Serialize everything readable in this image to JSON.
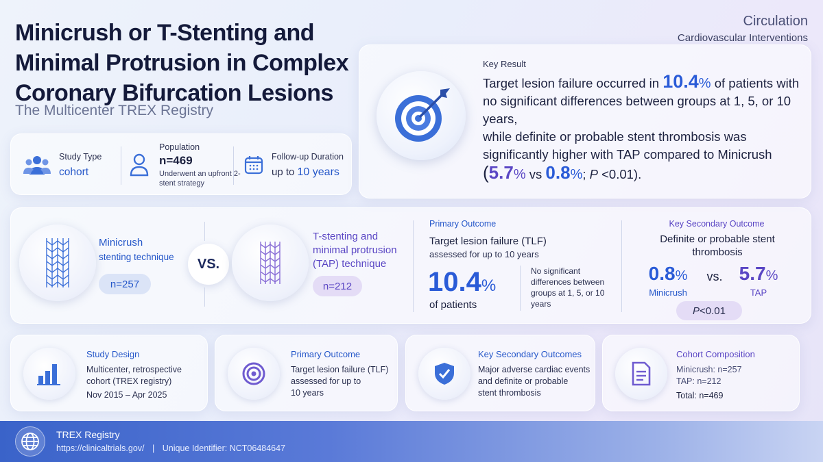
{
  "header": {
    "title": "Minicrush or T-Stenting and Minimal Protrusion in Complex Coronary Bifurcation Lesions",
    "subtitle": "The Multicenter TREX Registry",
    "journal_line1": "Circulation",
    "journal_line2": "Cardiovascular Interventions"
  },
  "info": {
    "study_type_label": "Study Type",
    "study_type_value": "cohort",
    "population_label": "Population",
    "population_value": "n=469",
    "population_note": "Underwent an upfront 2-stent strategy",
    "followup_label": "Follow-up Duration",
    "followup_prefix": "up to ",
    "followup_value": "10 years"
  },
  "key_result": {
    "label": "Key Result",
    "t1": "Target lesion failure occurred in ",
    "pct": "10.4",
    "pct_sign": "%",
    "t2": " of patients with no significant differences between groups at 1, 5, or 10 years,",
    "t3": "while definite or probable stent thrombosis was significantly higher with TAP compared to Minicrush",
    "open": "(",
    "v1": "5.7",
    "v1_sign": "%",
    "vs": " vs ",
    "v2": "0.8",
    "v2_sign": "%",
    "semi": "; ",
    "p": "P",
    "p_rest": " <0.01)."
  },
  "comparison": {
    "group1_name": "Minicrush",
    "group1_sub": "stenting technique",
    "group1_n": "n=257",
    "vs": "VS.",
    "group2_name": "T-stenting and minimal protrusion (TAP) technique",
    "group2_n": "n=212"
  },
  "primary": {
    "label": "Primary Outcome",
    "title": "Target lesion failure (TLF)",
    "sub": "assessed for up to 10 years",
    "value": "10.4",
    "value_sign": "%",
    "value_caption": "of patients",
    "note": "No significant differences between groups at 1, 5, or 10 years"
  },
  "secondary": {
    "label": "Key Secondary Outcome",
    "title": "Definite or probable stent thrombosis",
    "v1": "0.8",
    "v1_sign": "%",
    "v1_label": "Minicrush",
    "vs": "vs.",
    "v2": "5.7",
    "v2_sign": "%",
    "v2_label": "TAP",
    "p": "P",
    "p_rest": " <0.01"
  },
  "cards": [
    {
      "title": "Study Design",
      "l1": "Multicenter, retrospective",
      "l2": "cohort (TREX registry)",
      "l3": "Nov 2015 – Apr 2025"
    },
    {
      "title": "Primary Outcome",
      "l1": "Target lesion failure (TLF)",
      "l2": "assessed for up to",
      "l3": "10 years"
    },
    {
      "title": "Key Secondary Outcomes",
      "l1": "Major adverse cardiac events",
      "l2": "and definite or probable",
      "l3": "stent thrombosis"
    },
    {
      "title": "Cohort Composition",
      "l1": "Minicrush: n=257",
      "l2": "TAP: n=212",
      "l3": "Total: n=469"
    }
  ],
  "footer": {
    "registry": "TREX Registry",
    "url": "https://clinicaltrials.gov/",
    "sep": "|",
    "identifier": "Unique Identifier: NCT06484647"
  },
  "colors": {
    "accent_blue": "#2a5bd7",
    "accent_purple": "#5a46c4",
    "footer": "#3a63c9"
  }
}
